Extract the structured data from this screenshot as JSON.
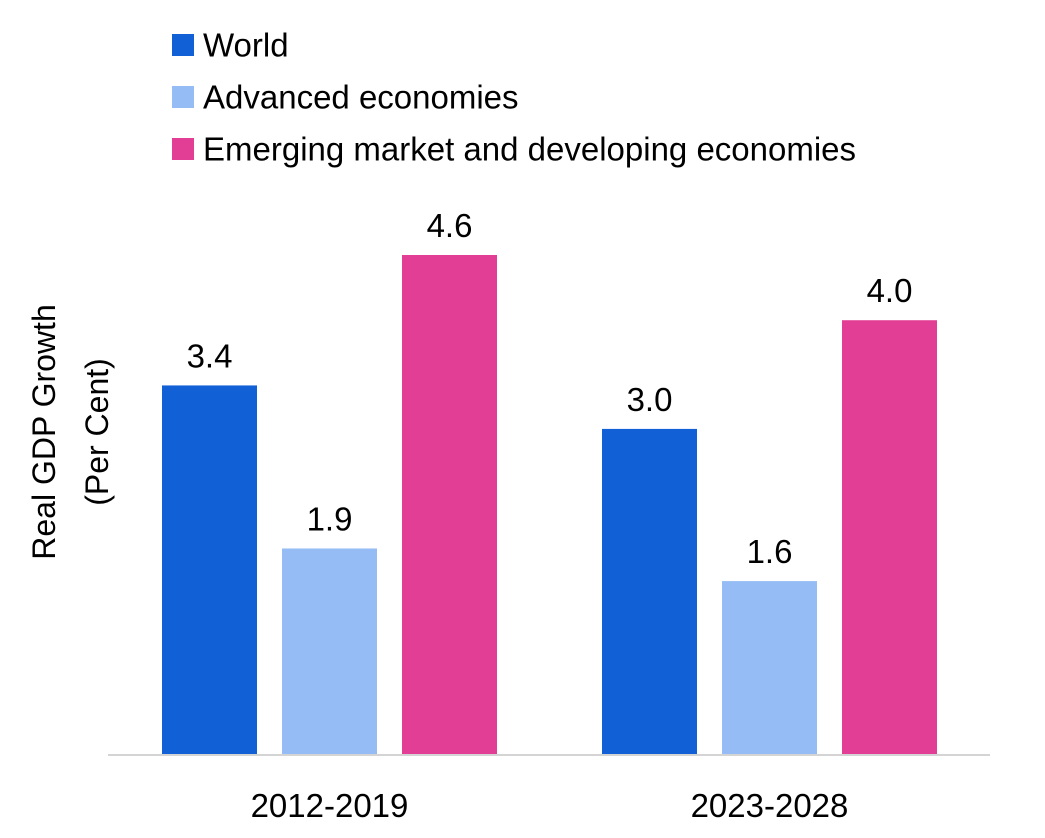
{
  "chart_data": {
    "type": "bar",
    "title": "",
    "xlabel": "",
    "ylabel": [
      "Real GDP Growth",
      "(Per Cent)"
    ],
    "categories": [
      "2012-2019",
      "2023-2028"
    ],
    "series": [
      {
        "name": "World",
        "values": [
          3.4,
          3.0
        ],
        "color": "#1260d6"
      },
      {
        "name": "Advanced economies",
        "values": [
          1.9,
          1.6
        ],
        "color": "#96bcf5"
      },
      {
        "name": "Emerging market and developing economies",
        "values": [
          4.6,
          4.0
        ],
        "color": "#e33e95"
      }
    ],
    "ylim": [
      0,
      4.6
    ],
    "grid": false,
    "legend_position": "top",
    "data_labels": true,
    "label_decimals": 1
  }
}
